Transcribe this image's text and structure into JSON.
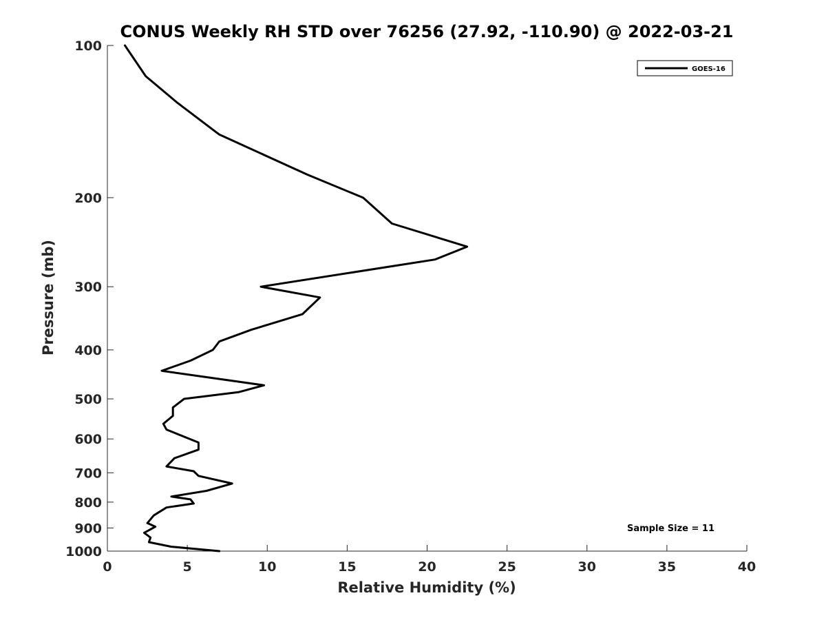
{
  "chart_data": {
    "type": "line",
    "title": "CONUS Weekly RH STD over 76256 (27.92, -110.90) @ 2022-03-21",
    "xlabel": "Relative Humidity (%)",
    "ylabel": "Pressure (mb)",
    "xlim": [
      0,
      40
    ],
    "ylim": [
      100,
      1000
    ],
    "y_scale": "log",
    "y_reversed": true,
    "x_ticks": [
      0,
      5,
      10,
      15,
      20,
      25,
      30,
      35,
      40
    ],
    "x_tick_labels": [
      "0",
      "5",
      "10",
      "15",
      "20",
      "25",
      "30",
      "35",
      "40"
    ],
    "y_ticks": [
      100,
      200,
      300,
      400,
      500,
      600,
      700,
      800,
      900,
      1000
    ],
    "y_tick_labels": [
      "100",
      "200",
      "300",
      "400",
      "500",
      "600",
      "700",
      "800",
      "900",
      "1000"
    ],
    "grid": false,
    "legend_position": "top-right",
    "annotation": "Sample Size = 11",
    "series": [
      {
        "name": "GOES-16",
        "color": "#000000",
        "x": [
          1.1,
          2.4,
          4.4,
          7.0,
          12.5,
          16.0,
          17.8,
          22.5,
          20.5,
          9.6,
          13.3,
          12.2,
          9.0,
          7.0,
          6.6,
          5.2,
          3.4,
          9.8,
          8.2,
          4.8,
          4.1,
          4.1,
          3.5,
          3.7,
          5.7,
          5.7,
          4.2,
          3.7,
          5.4,
          5.7,
          7.8,
          6.2,
          4.0,
          5.2,
          5.4,
          3.7,
          2.9,
          2.5,
          3.0,
          2.3,
          2.7,
          2.6,
          4.0,
          7.0
        ],
        "y": [
          100,
          115,
          130,
          150,
          180,
          200,
          225,
          250,
          265,
          300,
          315,
          340,
          365,
          385,
          400,
          420,
          440,
          470,
          485,
          500,
          520,
          540,
          560,
          575,
          610,
          630,
          655,
          680,
          695,
          710,
          735,
          760,
          780,
          790,
          805,
          820,
          850,
          880,
          895,
          920,
          940,
          960,
          980,
          1000
        ]
      }
    ]
  }
}
